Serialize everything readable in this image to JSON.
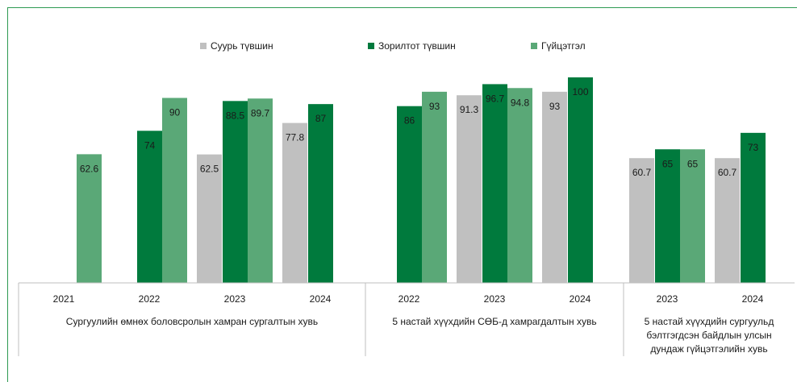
{
  "colors": {
    "baseline": "#c0c0c0",
    "target": "#007a3d",
    "achievement": "#5aa877",
    "frame": "#2e9a52",
    "text": "#1a1a1a",
    "axis": "#bfbfbf"
  },
  "legend": [
    {
      "label": "Суурь түвшин",
      "color": "#c0c0c0"
    },
    {
      "label": "Зорилтот түвшин",
      "color": "#007a3d"
    },
    {
      "label": "Гүйцэтгэл",
      "color": "#5aa877"
    }
  ],
  "chart_data": {
    "type": "bar",
    "ylim": [
      0,
      100
    ],
    "legend_position": "top",
    "grid": false,
    "series_names": [
      "Суурь түвшин",
      "Зорилтот түвшин",
      "Гүйцэтгэл"
    ],
    "groups": [
      {
        "label": "Сургуулийн өмнөх боловсролын хамран сургалтын хувь",
        "label_lines": [
          "Сургуулийн өмнөх боловсролын хамран сургалтын хувь"
        ],
        "years": [
          {
            "year": "2021",
            "bars": [
              {
                "series": "Гүйцэтгэл",
                "value": 62.6,
                "label": "62.6"
              }
            ]
          },
          {
            "year": "2022",
            "bars": [
              {
                "series": "Зорилтот түвшин",
                "value": 74,
                "label": "74"
              },
              {
                "series": "Гүйцэтгэл",
                "value": 90,
                "label": "90"
              }
            ]
          },
          {
            "year": "2023",
            "bars": [
              {
                "series": "Суурь түвшин",
                "value": 62.5,
                "label": "62.5"
              },
              {
                "series": "Зорилтот түвшин",
                "value": 88.5,
                "label": "88.5"
              },
              {
                "series": "Гүйцэтгэл",
                "value": 89.7,
                "label": "89.7"
              }
            ]
          },
          {
            "year": "2024",
            "bars": [
              {
                "series": "Суурь түвшин",
                "value": 77.8,
                "label": "77.8"
              },
              {
                "series": "Зорилтот түвшин",
                "value": 87,
                "label": "87"
              }
            ]
          }
        ]
      },
      {
        "label": "5 настай хүүхдийн СӨБ-д хамрагдалтын хувь",
        "label_lines": [
          "5 настай хүүхдийн СӨБ-д хамрагдалтын хувь"
        ],
        "years": [
          {
            "year": "2022",
            "bars": [
              {
                "series": "Зорилтот түвшин",
                "value": 86,
                "label": "86"
              },
              {
                "series": "Гүйцэтгэл",
                "value": 93,
                "label": "93"
              }
            ]
          },
          {
            "year": "2023",
            "bars": [
              {
                "series": "Суурь түвшин",
                "value": 91.3,
                "label": "91.3"
              },
              {
                "series": "Зорилтот түвшин",
                "value": 96.7,
                "label": "96.7"
              },
              {
                "series": "Гүйцэтгэл",
                "value": 94.8,
                "label": "94.8"
              }
            ]
          },
          {
            "year": "2024",
            "bars": [
              {
                "series": "Суурь түвшин",
                "value": 93,
                "label": "93"
              },
              {
                "series": "Зорилтот түвшин",
                "value": 100,
                "label": "100"
              }
            ]
          }
        ]
      },
      {
        "label": "5 настай хүүхдийн сургуульд бэлтгэгдсэн байдлын улсын дундаж гүйцэтгэлийн хувь",
        "label_lines": [
          "5 настай хүүхдийн сургуульд",
          "бэлтгэгдсэн байдлын улсын",
          "дундаж гүйцэтгэлийн хувь"
        ],
        "years": [
          {
            "year": "2023",
            "bars": [
              {
                "series": "Суурь түвшин",
                "value": 60.7,
                "label": "60.7"
              },
              {
                "series": "Зорилтот түвшин",
                "value": 65,
                "label": "65"
              },
              {
                "series": "Гүйцэтгэл",
                "value": 65,
                "label": "65"
              }
            ]
          },
          {
            "year": "2024",
            "bars": [
              {
                "series": "Суурь түвшин",
                "value": 60.7,
                "label": "60.7"
              },
              {
                "series": "Зорилтот түвшин",
                "value": 73,
                "label": "73"
              }
            ]
          }
        ]
      }
    ]
  }
}
